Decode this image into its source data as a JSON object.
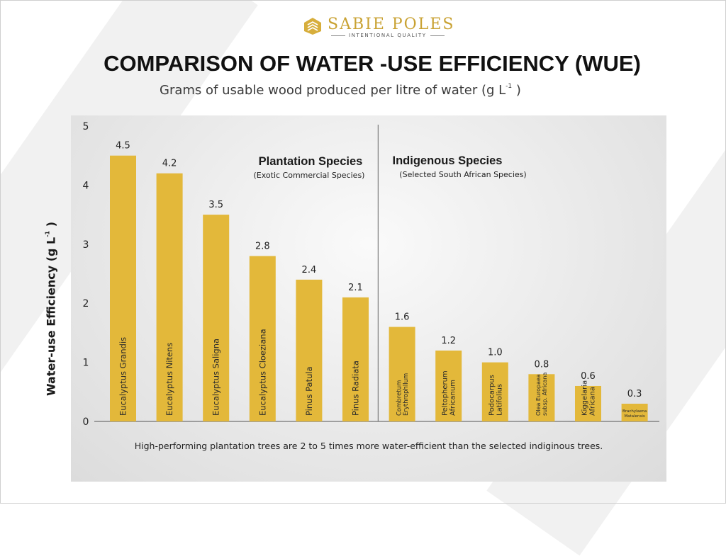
{
  "brand": {
    "name": "SABIE POLES",
    "tagline": "INTENTIONAL QUALITY",
    "accent": "#c9a233"
  },
  "title": "COMPARISON OF WATER -USE EFFICIENCY (WUE)",
  "subtitle": {
    "text": "Grams of usable wood produced per litre of water (g L",
    "sup": "-1",
    "close": " )"
  },
  "note": "High-performing plantation trees are 2 to 5 times more water-efficient than the selected indiginous trees.",
  "chart_data": {
    "type": "bar",
    "title": "COMPARISON OF WATER -USE EFFICIENCY (WUE)",
    "ylabel": "Water-use Efficiency (g L",
    "ylabel_sup": "-1",
    "ylabel_close": " )",
    "ylim": [
      0,
      5
    ],
    "yticks": [
      "0",
      "1",
      "2",
      "3",
      "4",
      "5"
    ],
    "grid": false,
    "bar_color": "#e3b83a",
    "categories": [
      "Eucalyptus Grandis",
      "Eucalyptus Nitens",
      "Eucalyptus Saligna",
      "Eucalyptus Cloeziana",
      "Pinus Patula",
      "Pinus Radiata",
      "Combretum Erythrophllum",
      "Peltopherum Africanum",
      "Podocarpus Latifolius",
      "Olea Europaea subsp. Africana",
      "Kiggelaria Africana",
      "Brachylaena Matalensis"
    ],
    "values": [
      4.5,
      4.2,
      3.5,
      2.8,
      2.4,
      2.1,
      1.6,
      1.2,
      1.0,
      0.8,
      0.6,
      0.3
    ],
    "value_labels": [
      "4.5",
      "4.2",
      "3.5",
      "2.8",
      "2.4",
      "2.1",
      "1.6",
      "1.2",
      "1.0",
      "0.8",
      "0.6",
      "0.3"
    ],
    "groups": [
      {
        "name": "Plantation Species",
        "caption": "(Exotic Commercial Species)",
        "count": 6
      },
      {
        "name": "Indigenous Species",
        "caption": "(Selected South African Species)",
        "count": 6
      }
    ]
  }
}
